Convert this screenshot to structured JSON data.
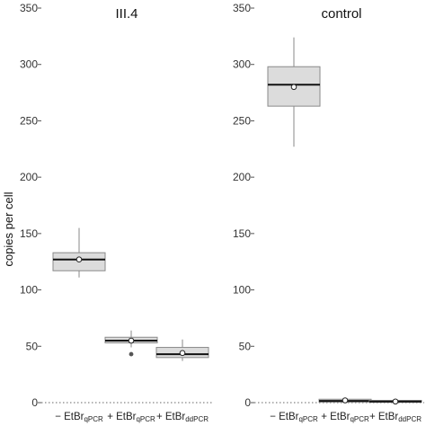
{
  "chart_data": {
    "type": "box",
    "ylabel": "copies per cell",
    "ylim": [
      0,
      350
    ],
    "yticks": [
      0,
      50,
      100,
      150,
      200,
      250,
      300,
      350
    ],
    "reference_line": {
      "y": 0,
      "style": "dotted"
    },
    "colors": {
      "box_fill": "#dcdcdc",
      "box_stroke": "#8a8a8a",
      "median": "#111111",
      "mean_marker": "#ffffff",
      "outlier": "#555555"
    },
    "panels": [
      {
        "title": "III.4",
        "categories": [
          {
            "label": "− EtBr",
            "sub": "qPCR",
            "whisker_low": 111,
            "q1": 117,
            "median": 127,
            "q3": 133,
            "whisker_high": 155,
            "mean": 127,
            "outliers": []
          },
          {
            "label": "+ EtBr",
            "sub": "qPCR",
            "whisker_low": 49,
            "q1": 53,
            "median": 55,
            "q3": 58,
            "whisker_high": 64,
            "mean": 55,
            "outliers": [
              43
            ]
          },
          {
            "label": "+ EtBr",
            "sub": "ddPCR",
            "whisker_low": 37,
            "q1": 40,
            "median": 43,
            "q3": 49,
            "whisker_high": 56,
            "mean": 44,
            "outliers": []
          }
        ]
      },
      {
        "title": "control",
        "categories": [
          {
            "label": "− EtBr",
            "sub": "qPCR",
            "whisker_low": 227,
            "q1": 263,
            "median": 282,
            "q3": 298,
            "whisker_high": 324,
            "mean": 280,
            "outliers": []
          },
          {
            "label": "+ EtBr",
            "sub": "qPCR",
            "whisker_low": 0,
            "q1": 0.5,
            "median": 1.5,
            "q3": 3,
            "whisker_high": 4.5,
            "mean": 2,
            "outliers": []
          },
          {
            "label": "+ EtBr",
            "sub": "ddPCR",
            "whisker_low": 0,
            "q1": 0.3,
            "median": 1,
            "q3": 2,
            "whisker_high": 3.5,
            "mean": 1,
            "outliers": []
          }
        ]
      }
    ]
  }
}
